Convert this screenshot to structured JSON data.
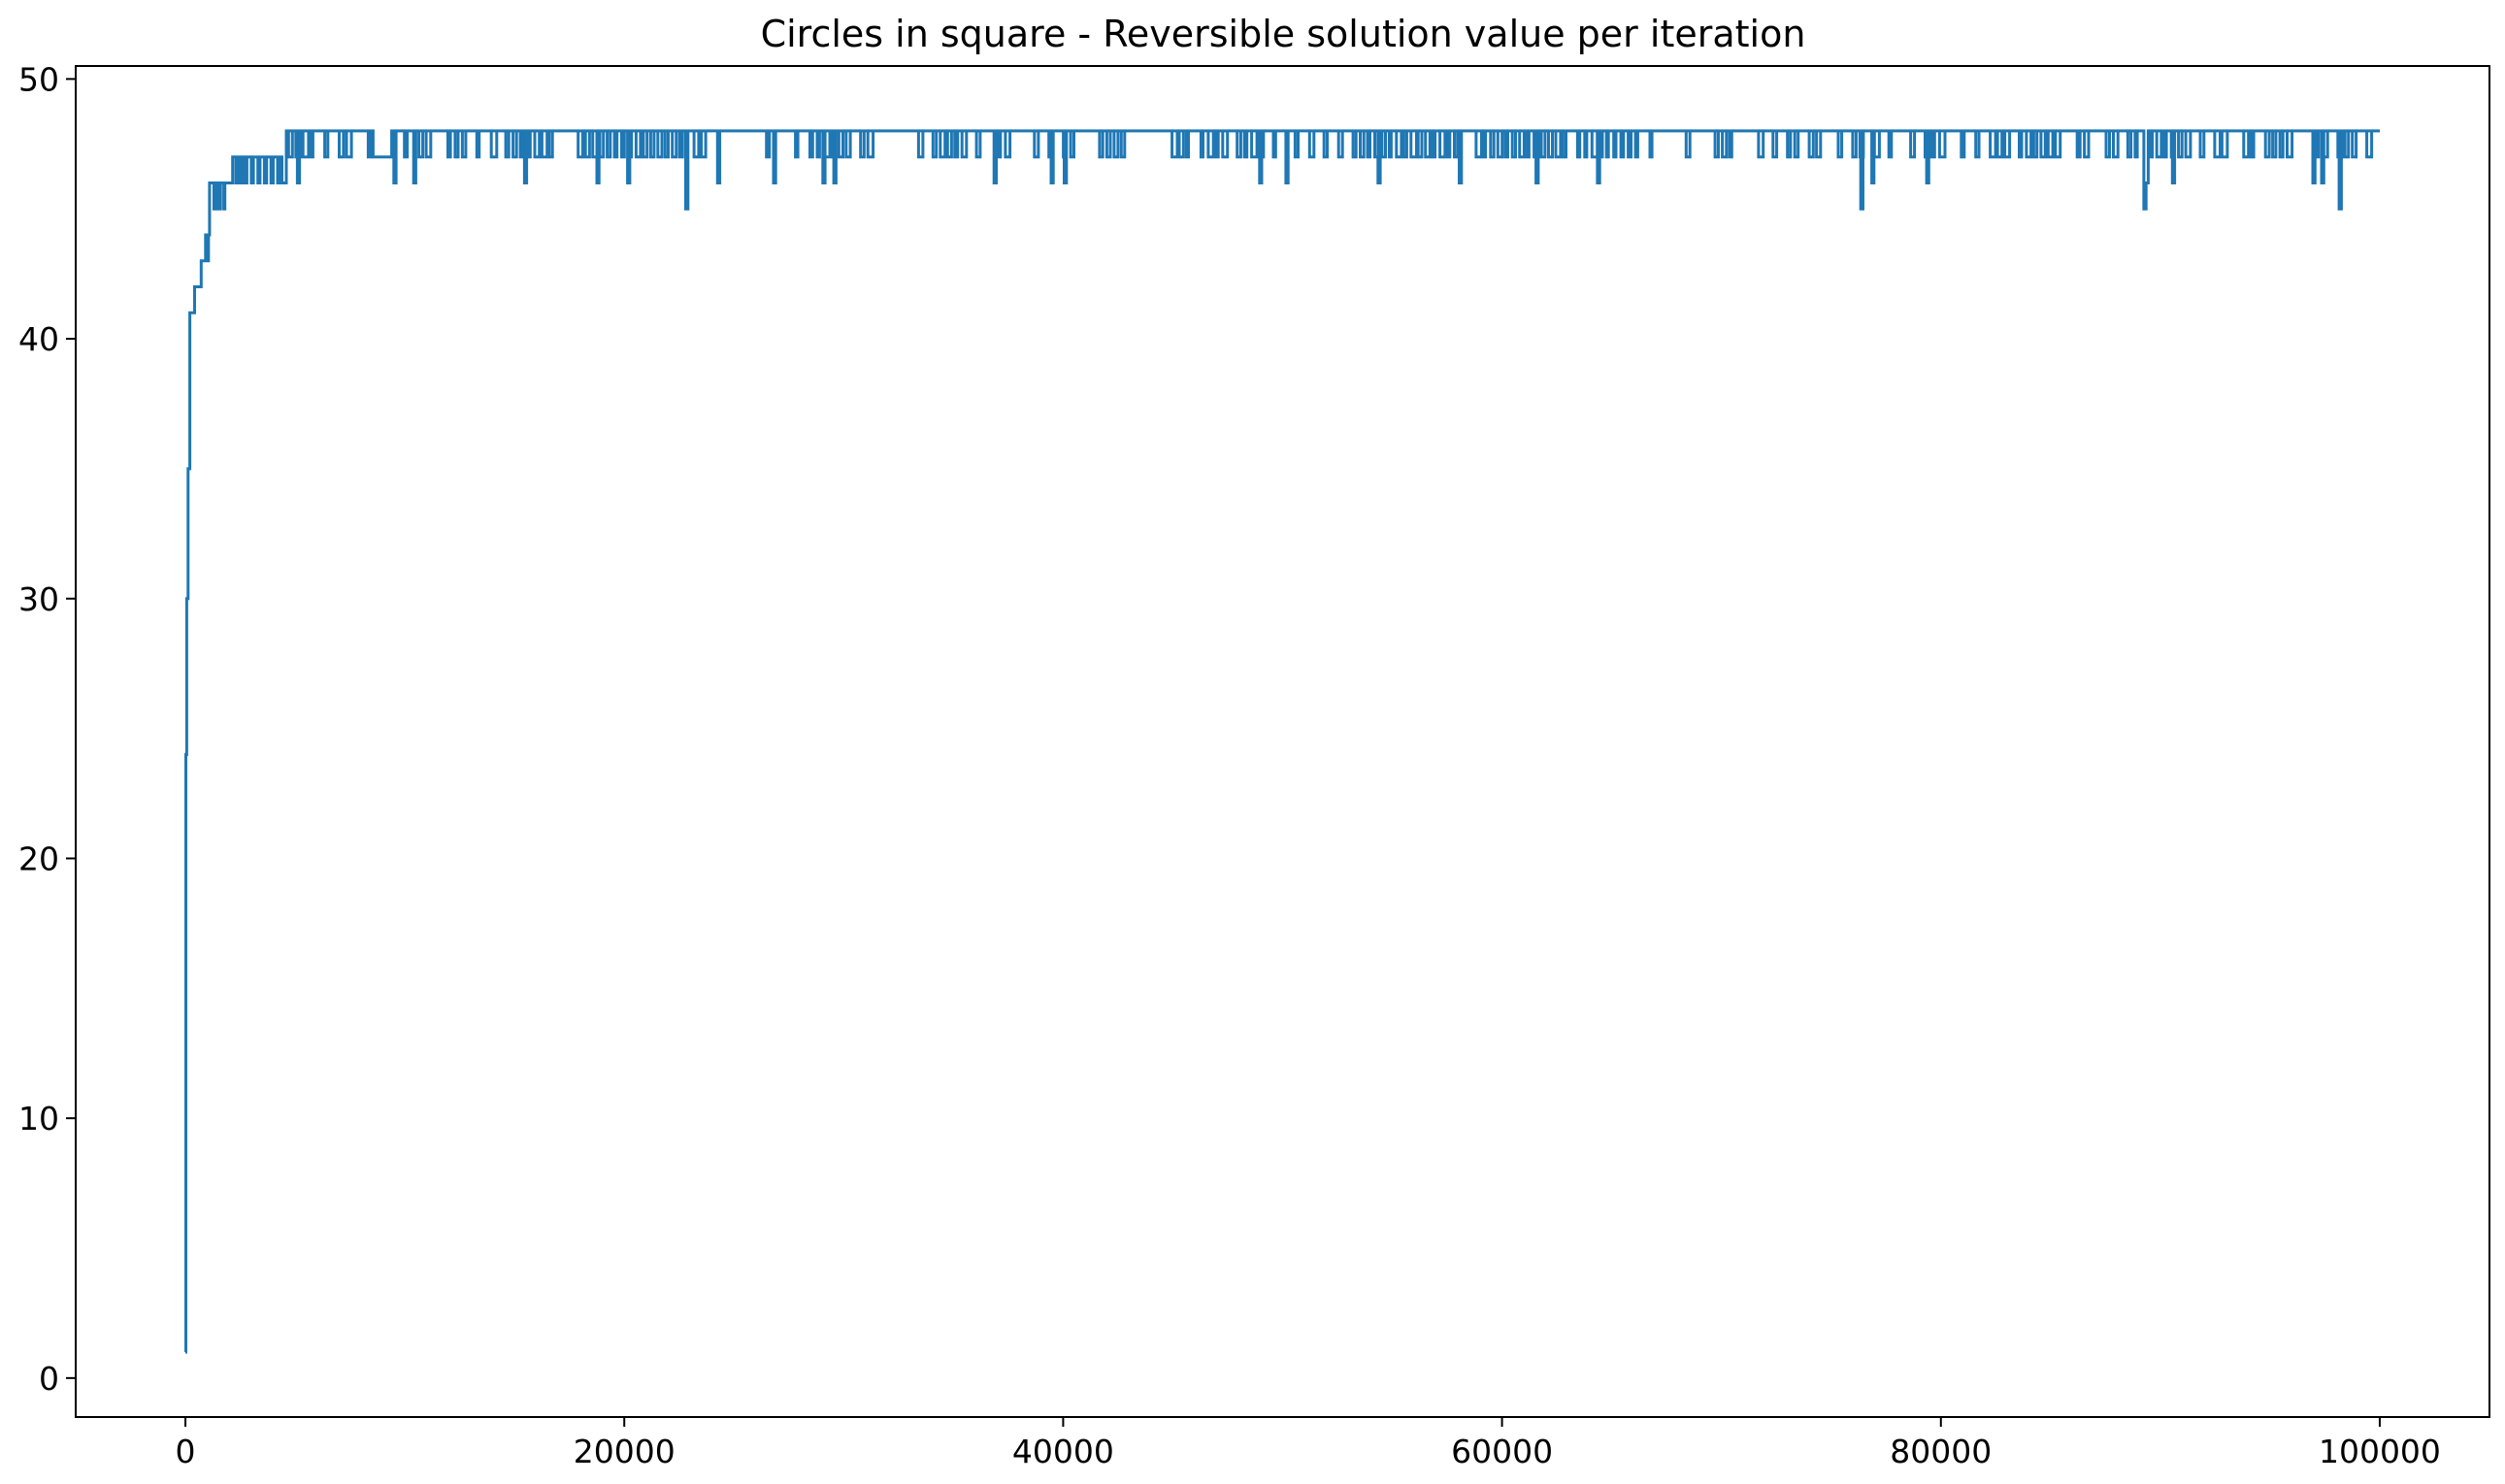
{
  "chart_data": {
    "type": "line",
    "title": "Circles in square - Reversible solution value per iteration",
    "xlabel": "",
    "ylabel": "",
    "xlim": [
      -5000,
      105000
    ],
    "ylim": [
      -1.5,
      50.5
    ],
    "xticks": [
      0,
      20000,
      40000,
      60000,
      80000,
      100000
    ],
    "yticks": [
      0,
      10,
      20,
      30,
      40,
      50
    ],
    "grid": false,
    "colors": {
      "line": "#1f77b4",
      "axes": "#000000"
    },
    "series": [
      {
        "note": "step line; values oscillate between 47 and 48 after ~4600 iterations with occasional dips to 45-46",
        "points": [
          [
            0,
            1
          ],
          [
            20,
            24
          ],
          [
            60,
            30
          ],
          [
            120,
            35
          ],
          [
            200,
            41
          ],
          [
            400,
            41
          ],
          [
            420,
            42
          ],
          [
            700,
            42
          ],
          [
            720,
            43
          ],
          [
            900,
            43
          ],
          [
            920,
            44
          ],
          [
            1000,
            43
          ],
          [
            1050,
            44
          ],
          [
            1100,
            46
          ],
          [
            1300,
            45
          ],
          [
            1400,
            46
          ],
          [
            1500,
            45
          ],
          [
            1600,
            46
          ],
          [
            1700,
            46
          ],
          [
            1750,
            45
          ],
          [
            1800,
            46
          ],
          [
            2100,
            46
          ],
          [
            2150,
            47
          ],
          [
            2300,
            46
          ],
          [
            2400,
            47
          ],
          [
            2500,
            46
          ],
          [
            2600,
            47
          ],
          [
            2700,
            46
          ],
          [
            2800,
            47
          ],
          [
            3000,
            46
          ],
          [
            3100,
            47
          ],
          [
            3300,
            46
          ],
          [
            3400,
            47
          ],
          [
            3600,
            46
          ],
          [
            3700,
            47
          ],
          [
            3900,
            46
          ],
          [
            4000,
            47
          ],
          [
            4200,
            46
          ],
          [
            4300,
            47
          ],
          [
            4400,
            46
          ],
          [
            4600,
            48
          ],
          [
            5000,
            48
          ],
          [
            5100,
            46
          ],
          [
            5200,
            48
          ],
          [
            8500,
            48
          ],
          [
            8550,
            47
          ],
          [
            9400,
            48
          ],
          [
            9500,
            46
          ],
          [
            9600,
            48
          ],
          [
            10300,
            48
          ],
          [
            10400,
            46
          ],
          [
            10500,
            48
          ],
          [
            15400,
            48
          ],
          [
            15450,
            46
          ],
          [
            15550,
            48
          ],
          [
            18700,
            48
          ],
          [
            18750,
            46
          ],
          [
            18850,
            48
          ],
          [
            20100,
            48
          ],
          [
            20150,
            46
          ],
          [
            20250,
            48
          ],
          [
            22700,
            48
          ],
          [
            22800,
            45
          ],
          [
            22900,
            48
          ],
          [
            24200,
            48
          ],
          [
            24250,
            46
          ],
          [
            24350,
            48
          ],
          [
            26700,
            48
          ],
          [
            26800,
            46
          ],
          [
            26900,
            48
          ],
          [
            29000,
            48
          ],
          [
            29050,
            46
          ],
          [
            29150,
            48
          ],
          [
            29500,
            48
          ],
          [
            29550,
            46
          ],
          [
            29650,
            48
          ],
          [
            36800,
            48
          ],
          [
            36850,
            46
          ],
          [
            36950,
            48
          ],
          [
            39400,
            48
          ],
          [
            39450,
            46
          ],
          [
            39550,
            48
          ],
          [
            40000,
            48
          ],
          [
            40050,
            46
          ],
          [
            40150,
            48
          ],
          [
            48900,
            48
          ],
          [
            48950,
            46
          ],
          [
            49050,
            48
          ],
          [
            50100,
            48
          ],
          [
            50150,
            46
          ],
          [
            50250,
            48
          ],
          [
            54300,
            48
          ],
          [
            54350,
            46
          ],
          [
            54450,
            48
          ],
          [
            58000,
            48
          ],
          [
            58050,
            46
          ],
          [
            58150,
            48
          ],
          [
            61500,
            48
          ],
          [
            61550,
            46
          ],
          [
            61650,
            48
          ],
          [
            64300,
            48
          ],
          [
            64350,
            46
          ],
          [
            64450,
            48
          ],
          [
            76300,
            48
          ],
          [
            76350,
            45
          ],
          [
            76450,
            48
          ],
          [
            76800,
            48
          ],
          [
            76850,
            46
          ],
          [
            76950,
            48
          ],
          [
            79300,
            48
          ],
          [
            79350,
            46
          ],
          [
            79450,
            48
          ],
          [
            89200,
            48
          ],
          [
            89250,
            45
          ],
          [
            89350,
            46
          ],
          [
            89450,
            48
          ],
          [
            90500,
            48
          ],
          [
            90550,
            46
          ],
          [
            90650,
            48
          ],
          [
            96900,
            48
          ],
          [
            96950,
            46
          ],
          [
            97050,
            48
          ],
          [
            97300,
            48
          ],
          [
            97350,
            46
          ],
          [
            97450,
            48
          ],
          [
            98100,
            48
          ],
          [
            98150,
            45
          ],
          [
            98250,
            48
          ],
          [
            100000,
            48
          ]
        ]
      }
    ]
  }
}
